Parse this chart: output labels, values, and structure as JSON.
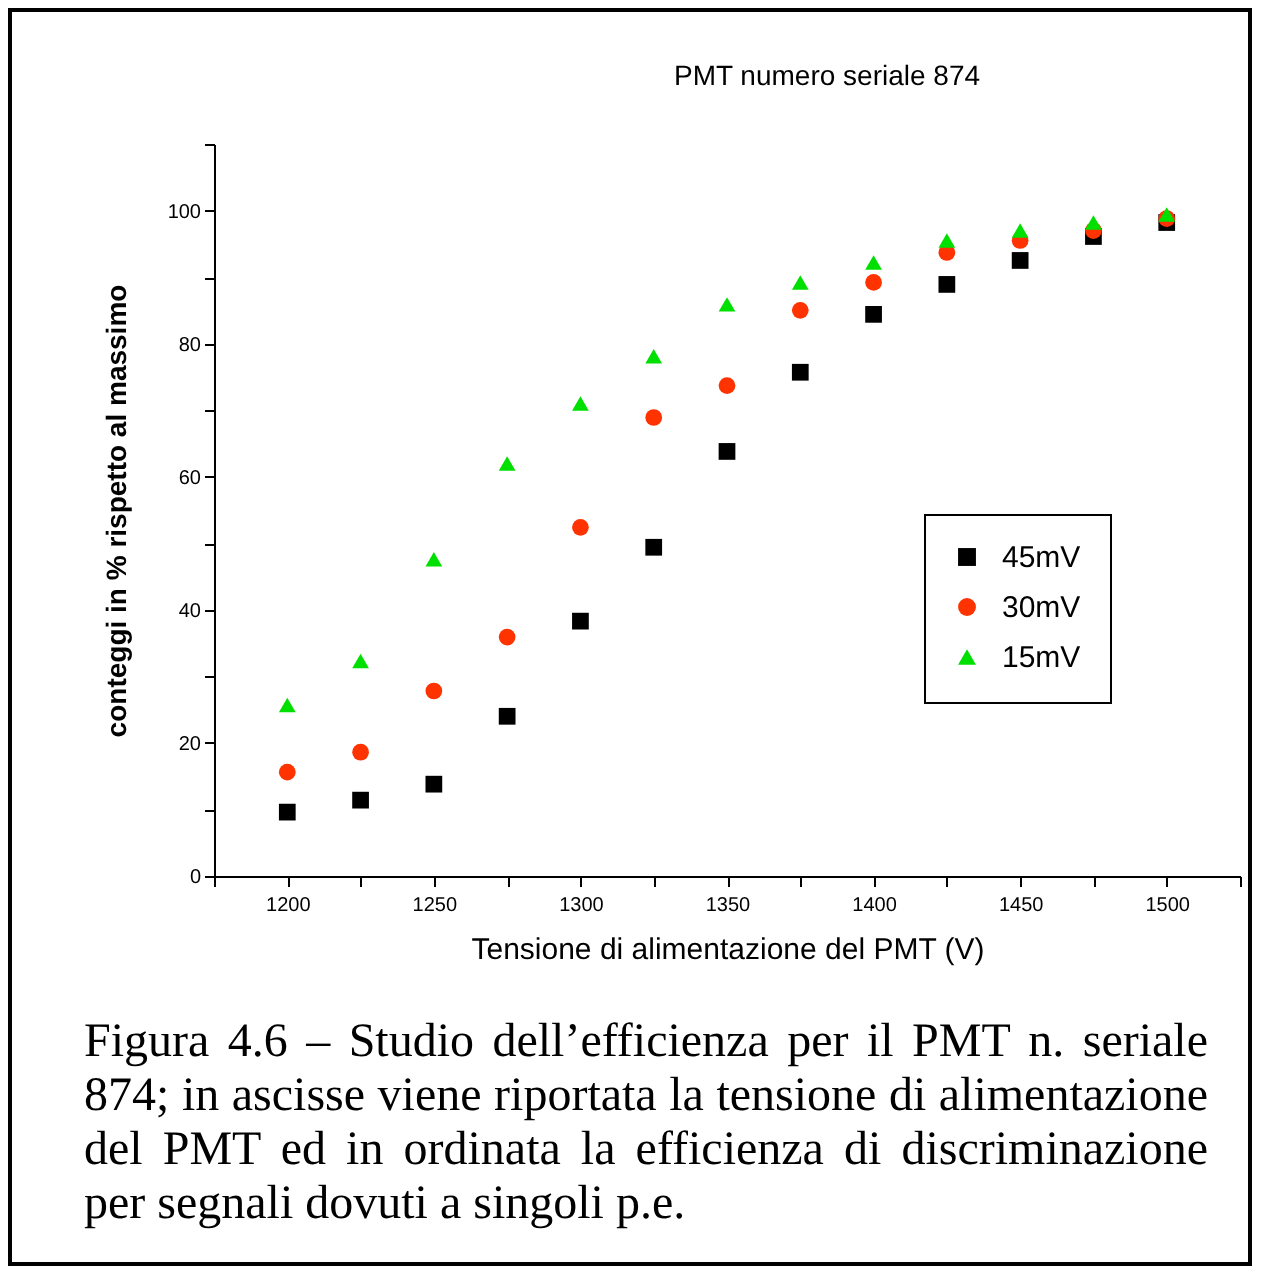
{
  "chart_data": {
    "type": "scatter",
    "title": "PMT numero seriale 874",
    "xlabel": "Tensione di alimentazione del PMT (V)",
    "ylabel": "conteggi in % rispetto al massimo",
    "x": [
      1200,
      1225,
      1250,
      1275,
      1300,
      1325,
      1350,
      1375,
      1400,
      1425,
      1450,
      1475,
      1500
    ],
    "series": [
      {
        "name": "45mV",
        "color": "#000000",
        "marker": "square",
        "values": [
          9.6,
          11.4,
          13.8,
          24,
          38.3,
          49.4,
          63.8,
          75.7,
          84.4,
          88.9,
          92.5,
          96.1,
          98.2
        ]
      },
      {
        "name": "30mV",
        "color": "#ff3300",
        "marker": "circle",
        "values": [
          15.6,
          18.6,
          27.8,
          35.9,
          52.4,
          68.9,
          73.7,
          85,
          89.2,
          93.7,
          95.5,
          97,
          98.8
        ]
      },
      {
        "name": "15mV",
        "color": "#00e000",
        "marker": "triangle",
        "values": [
          25.7,
          32.3,
          47.6,
          62,
          71,
          78.1,
          85.9,
          89.2,
          92.2,
          95.5,
          97,
          98.2,
          99.4
        ]
      }
    ],
    "xlim": [
      1175,
      1525
    ],
    "xticks": [
      {
        "value": 1175,
        "label": null
      },
      1200,
      {
        "value": 1225,
        "label": null
      },
      1250,
      {
        "value": 1275,
        "label": null
      },
      1300,
      {
        "value": 1325,
        "label": null
      },
      1350,
      {
        "value": 1375,
        "label": null
      },
      1400,
      {
        "value": 1425,
        "label": null
      },
      1450,
      {
        "value": 1475,
        "label": null
      },
      1500,
      {
        "value": 1525,
        "label": null
      }
    ],
    "ylim": [
      0,
      110
    ],
    "yticks": [
      0,
      {
        "value": 10,
        "label": null
      },
      20,
      {
        "value": 30,
        "label": null
      },
      40,
      {
        "value": 50,
        "label": null
      },
      60,
      {
        "value": 70,
        "label": null
      },
      80,
      {
        "value": 90,
        "label": null
      },
      100,
      {
        "value": 110,
        "label": null
      }
    ],
    "grid": false,
    "legend": "right",
    "annotations": [
      "Figura 4.6 – Studio dell’efficienza per il PMT n. seriale 874; in ascisse viene riportata la tensione di alimentazione del PMT ed in ordinata la efficienza di discriminazione per segnali dovuti a singoli  p.e."
    ]
  }
}
